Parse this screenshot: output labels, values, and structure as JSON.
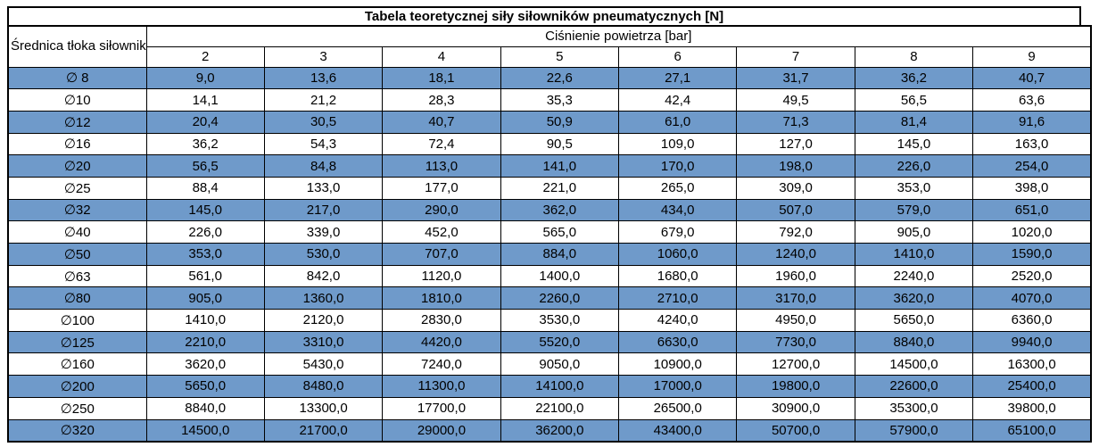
{
  "table": {
    "title": "Tabela teoretycznej siły siłowników pneumatycznych [N]",
    "diameter_header": "Średnica tłoka siłownika",
    "pressure_header": "Ciśnienie powietrza [bar]",
    "pressure_columns": [
      "2",
      "3",
      "4",
      "5",
      "6",
      "7",
      "8",
      "9"
    ],
    "rows": [
      {
        "diameter": "∅ 8",
        "values": [
          "9,0",
          "13,6",
          "18,1",
          "22,6",
          "27,1",
          "31,7",
          "36,2",
          "40,7"
        ]
      },
      {
        "diameter": "∅10",
        "values": [
          "14,1",
          "21,2",
          "28,3",
          "35,3",
          "42,4",
          "49,5",
          "56,5",
          "63,6"
        ]
      },
      {
        "diameter": "∅12",
        "values": [
          "20,4",
          "30,5",
          "40,7",
          "50,9",
          "61,0",
          "71,3",
          "81,4",
          "91,6"
        ]
      },
      {
        "diameter": "∅16",
        "values": [
          "36,2",
          "54,3",
          "72,4",
          "90,5",
          "109,0",
          "127,0",
          "145,0",
          "163,0"
        ]
      },
      {
        "diameter": "∅20",
        "values": [
          "56,5",
          "84,8",
          "113,0",
          "141,0",
          "170,0",
          "198,0",
          "226,0",
          "254,0"
        ]
      },
      {
        "diameter": "∅25",
        "values": [
          "88,4",
          "133,0",
          "177,0",
          "221,0",
          "265,0",
          "309,0",
          "353,0",
          "398,0"
        ]
      },
      {
        "diameter": "∅32",
        "values": [
          "145,0",
          "217,0",
          "290,0",
          "362,0",
          "434,0",
          "507,0",
          "579,0",
          "651,0"
        ]
      },
      {
        "diameter": "∅40",
        "values": [
          "226,0",
          "339,0",
          "452,0",
          "565,0",
          "679,0",
          "792,0",
          "905,0",
          "1020,0"
        ]
      },
      {
        "diameter": "∅50",
        "values": [
          "353,0",
          "530,0",
          "707,0",
          "884,0",
          "1060,0",
          "1240,0",
          "1410,0",
          "1590,0"
        ]
      },
      {
        "diameter": "∅63",
        "values": [
          "561,0",
          "842,0",
          "1120,0",
          "1400,0",
          "1680,0",
          "1960,0",
          "2240,0",
          "2520,0"
        ]
      },
      {
        "diameter": "∅80",
        "values": [
          "905,0",
          "1360,0",
          "1810,0",
          "2260,0",
          "2710,0",
          "3170,0",
          "3620,0",
          "4070,0"
        ]
      },
      {
        "diameter": "∅100",
        "values": [
          "1410,0",
          "2120,0",
          "2830,0",
          "3530,0",
          "4240,0",
          "4950,0",
          "5650,0",
          "6360,0"
        ]
      },
      {
        "diameter": "∅125",
        "values": [
          "2210,0",
          "3310,0",
          "4420,0",
          "5520,0",
          "6630,0",
          "7730,0",
          "8840,0",
          "9940,0"
        ]
      },
      {
        "diameter": "∅160",
        "values": [
          "3620,0",
          "5430,0",
          "7240,0",
          "9050,0",
          "10900,0",
          "12700,0",
          "14500,0",
          "16300,0"
        ]
      },
      {
        "diameter": "∅200",
        "values": [
          "5650,0",
          "8480,0",
          "11300,0",
          "14100,0",
          "17000,0",
          "19800,0",
          "22600,0",
          "25400,0"
        ]
      },
      {
        "diameter": "∅250",
        "values": [
          "8840,0",
          "13300,0",
          "17700,0",
          "22100,0",
          "26500,0",
          "30900,0",
          "35300,0",
          "39800,0"
        ]
      },
      {
        "diameter": "∅320",
        "values": [
          "14500,0",
          "21700,0",
          "29000,0",
          "36200,0",
          "43400,0",
          "50700,0",
          "57900,0",
          "65100,0"
        ]
      }
    ],
    "colors": {
      "row_highlight": "#6f9aca",
      "border": "#000000",
      "background": "#ffffff",
      "text": "#000000"
    }
  }
}
